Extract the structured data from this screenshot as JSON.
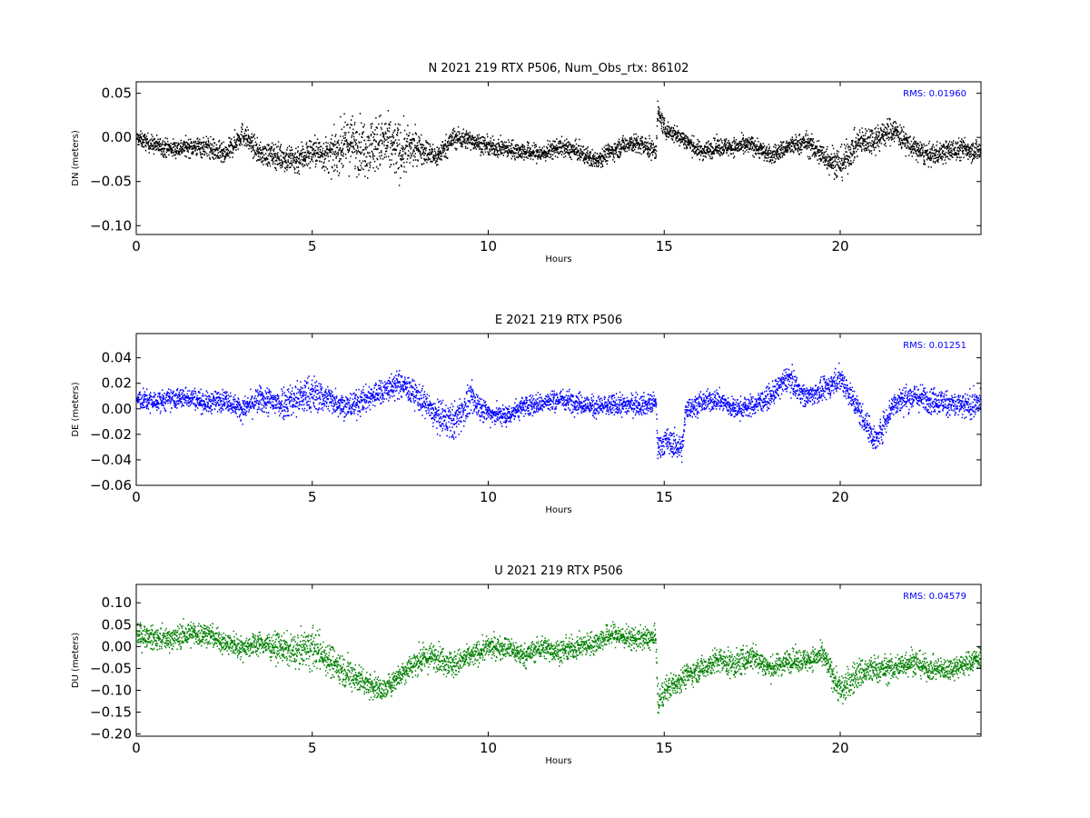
{
  "chart_data": [
    {
      "type": "scatter",
      "component": "N",
      "title": "N 2021 219 RTX  P506, Num_Obs_rtx: 86102",
      "xlabel": "Hours",
      "ylabel": "DN (meters)",
      "rms_text": "RMS:  0.01960",
      "color": "#000000",
      "xlim": [
        0,
        24
      ],
      "ylim": [
        -0.11,
        0.063
      ],
      "xticks": [
        0,
        5,
        10,
        15,
        20
      ],
      "xtick_labels": [
        "0",
        "5",
        "10",
        "15",
        "20"
      ],
      "yticks": [
        0.05,
        0.0,
        -0.05,
        -0.1
      ],
      "ytick_labels": [
        "0.05",
        "0.00",
        "−0.05",
        "−0.10"
      ],
      "series": [
        {
          "x": [
            0,
            0.5,
            1,
            1.5,
            2,
            2.5,
            3,
            3.5,
            4,
            4.5,
            5,
            5.5,
            6,
            6.5,
            7,
            7.5,
            8,
            8.5,
            9,
            9.5,
            10,
            10.5,
            11,
            11.5,
            12,
            12.5,
            13,
            13.5,
            14,
            14.5,
            14.75,
            14.8,
            15,
            15.5,
            16,
            16.5,
            17,
            17.5,
            18,
            18.5,
            19,
            19.5,
            20,
            20.5,
            21,
            21.5,
            22,
            22.5,
            23,
            23.5,
            24
          ],
          "y": [
            0,
            -0.008,
            -0.012,
            -0.01,
            -0.01,
            -0.02,
            0.005,
            -0.018,
            -0.02,
            -0.025,
            -0.015,
            -0.02,
            -0.005,
            -0.01,
            -0.005,
            -0.015,
            -0.01,
            -0.022,
            0.0,
            -0.002,
            -0.01,
            -0.012,
            -0.015,
            -0.018,
            -0.01,
            -0.015,
            -0.025,
            -0.015,
            -0.005,
            -0.01,
            -0.015,
            0.03,
            0.01,
            0.0,
            -0.015,
            -0.01,
            -0.01,
            -0.008,
            -0.02,
            -0.01,
            -0.005,
            -0.02,
            -0.03,
            -0.005,
            0.0,
            0.01,
            -0.01,
            -0.02,
            -0.015,
            -0.012,
            -0.015
          ],
          "spread": [
            0.008,
            0.01,
            0.01,
            0.01,
            0.012,
            0.012,
            0.012,
            0.012,
            0.014,
            0.018,
            0.016,
            0.02,
            0.03,
            0.03,
            0.032,
            0.03,
            0.016,
            0.012,
            0.012,
            0.01,
            0.01,
            0.01,
            0.01,
            0.01,
            0.01,
            0.01,
            0.01,
            0.01,
            0.01,
            0.012,
            0.01,
            0.01,
            0.01,
            0.01,
            0.01,
            0.01,
            0.01,
            0.01,
            0.01,
            0.01,
            0.012,
            0.015,
            0.018,
            0.015,
            0.016,
            0.014,
            0.012,
            0.012,
            0.012,
            0.012,
            0.012
          ]
        }
      ]
    },
    {
      "type": "scatter",
      "component": "E",
      "title": "E 2021 219 RTX  P506",
      "xlabel": "Hours",
      "ylabel": "DE (meters)",
      "rms_text": "RMS:  0.01251",
      "color": "#0000ff",
      "xlim": [
        0,
        24
      ],
      "ylim": [
        -0.06,
        0.059
      ],
      "xticks": [
        0,
        5,
        10,
        15,
        20
      ],
      "xtick_labels": [
        "0",
        "5",
        "10",
        "15",
        "20"
      ],
      "yticks": [
        0.04,
        0.02,
        0.0,
        -0.02,
        -0.04,
        -0.06
      ],
      "ytick_labels": [
        "0.04",
        "0.02",
        "0.00",
        "−0.02",
        "−0.04",
        "−0.06"
      ],
      "series": [
        {
          "x": [
            0,
            0.5,
            1,
            1.5,
            2,
            2.5,
            3,
            3.5,
            4,
            4.5,
            5,
            5.5,
            6,
            6.5,
            7,
            7.5,
            8,
            8.5,
            9,
            9.5,
            10,
            10.5,
            11,
            11.5,
            12,
            12.5,
            13,
            13.5,
            14,
            14.5,
            14.75,
            14.8,
            15,
            15.5,
            15.6,
            16,
            16.5,
            17,
            17.5,
            18,
            18.5,
            19,
            19.5,
            20,
            20.5,
            21,
            21.5,
            22,
            22.5,
            23,
            23.5,
            24
          ],
          "y": [
            0.008,
            0.006,
            0.008,
            0.01,
            0.005,
            0.008,
            0.0,
            0.008,
            0.005,
            0.008,
            0.012,
            0.008,
            0.002,
            0.008,
            0.015,
            0.02,
            0.01,
            -0.005,
            -0.01,
            0.008,
            -0.003,
            -0.005,
            0.003,
            0.005,
            0.008,
            0.006,
            0.002,
            0.003,
            0.004,
            0.004,
            0.005,
            -0.03,
            -0.025,
            -0.03,
            0.0,
            0.005,
            0.008,
            0.0,
            0.003,
            0.01,
            0.025,
            0.01,
            0.015,
            0.025,
            0.0,
            -0.025,
            0.005,
            0.01,
            0.008,
            0.005,
            0.002,
            0.005
          ],
          "spread": [
            0.008,
            0.008,
            0.008,
            0.008,
            0.008,
            0.008,
            0.008,
            0.01,
            0.012,
            0.014,
            0.014,
            0.01,
            0.01,
            0.01,
            0.01,
            0.01,
            0.01,
            0.012,
            0.014,
            0.012,
            0.008,
            0.008,
            0.008,
            0.008,
            0.008,
            0.008,
            0.008,
            0.008,
            0.008,
            0.008,
            0.008,
            0.01,
            0.01,
            0.01,
            0.008,
            0.008,
            0.008,
            0.008,
            0.008,
            0.008,
            0.01,
            0.008,
            0.008,
            0.01,
            0.01,
            0.01,
            0.01,
            0.01,
            0.01,
            0.01,
            0.01,
            0.01
          ]
        }
      ]
    },
    {
      "type": "scatter",
      "component": "U",
      "title": "U 2021 219 RTX  P506",
      "xlabel": "Hours",
      "ylabel": "DU (meters)",
      "rms_text": "RMS:  0.04579",
      "color": "#008000",
      "xlim": [
        0,
        24
      ],
      "ylim": [
        -0.205,
        0.142
      ],
      "xticks": [
        0,
        5,
        10,
        15,
        20
      ],
      "xtick_labels": [
        "0",
        "5",
        "10",
        "15",
        "20"
      ],
      "yticks": [
        0.1,
        0.05,
        0.0,
        -0.05,
        -0.1,
        -0.15,
        -0.2
      ],
      "ytick_labels": [
        "0.10",
        "0.05",
        "0.00",
        "−0.05",
        "−0.10",
        "−0.15",
        "−0.20"
      ],
      "series": [
        {
          "x": [
            0,
            0.5,
            1,
            1.5,
            2,
            2.5,
            3,
            3.5,
            4,
            4.5,
            5,
            5.5,
            6,
            6.5,
            7,
            7.5,
            8,
            8.5,
            9,
            9.5,
            10,
            10.5,
            11,
            11.5,
            12,
            12.5,
            13,
            13.5,
            14,
            14.5,
            14.75,
            14.8,
            15,
            15.5,
            16,
            16.5,
            17,
            17.5,
            18,
            18.5,
            19,
            19.5,
            20,
            20.5,
            21,
            21.5,
            22,
            22.5,
            23,
            23.5,
            24
          ],
          "y": [
            0.03,
            0.02,
            0.02,
            0.03,
            0.03,
            0.01,
            0.0,
            0.01,
            0.0,
            -0.01,
            0.0,
            -0.03,
            -0.06,
            -0.08,
            -0.1,
            -0.06,
            -0.03,
            -0.02,
            -0.04,
            -0.02,
            0.0,
            0.0,
            -0.02,
            0.0,
            -0.01,
            0.0,
            0.01,
            0.03,
            0.02,
            0.02,
            0.02,
            -0.13,
            -0.1,
            -0.07,
            -0.05,
            -0.03,
            -0.04,
            -0.02,
            -0.05,
            -0.03,
            -0.03,
            -0.02,
            -0.1,
            -0.06,
            -0.05,
            -0.05,
            -0.03,
            -0.05,
            -0.05,
            -0.04,
            -0.02
          ],
          "spread": [
            0.025,
            0.025,
            0.025,
            0.03,
            0.025,
            0.025,
            0.025,
            0.025,
            0.03,
            0.035,
            0.045,
            0.035,
            0.035,
            0.03,
            0.025,
            0.025,
            0.03,
            0.03,
            0.03,
            0.025,
            0.025,
            0.025,
            0.025,
            0.025,
            0.025,
            0.025,
            0.025,
            0.025,
            0.025,
            0.025,
            0.025,
            0.03,
            0.03,
            0.025,
            0.025,
            0.03,
            0.03,
            0.03,
            0.025,
            0.025,
            0.025,
            0.025,
            0.035,
            0.035,
            0.03,
            0.03,
            0.03,
            0.025,
            0.025,
            0.025,
            0.025
          ]
        }
      ]
    }
  ]
}
